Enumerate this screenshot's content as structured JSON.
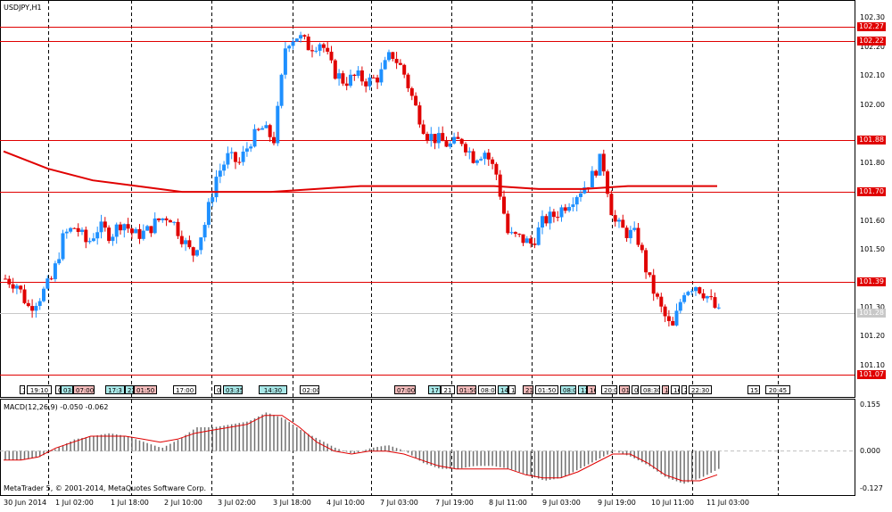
{
  "chart_title": "USDJPY,H1",
  "macd_label": "MACD(12,26,9) -0.050 -0.062",
  "copyright": "MetaTrader 5, © 2001-2014, MetaQuotes Software Corp.",
  "price_axis": [
    "102.30",
    "102.20",
    "102.10",
    "102.00",
    "101.80",
    "101.60",
    "101.50",
    "101.30",
    "101.20",
    "101.10"
  ],
  "level_labels": [
    {
      "text": "102.27",
      "style": "red"
    },
    {
      "text": "102.22",
      "style": "red"
    },
    {
      "text": "101.88",
      "style": "red"
    },
    {
      "text": "101.70",
      "style": "red"
    },
    {
      "text": "101.39",
      "style": "red"
    },
    {
      "text": "101.28",
      "style": "grey"
    },
    {
      "text": "101.07",
      "style": "red"
    }
  ],
  "macd_axis": [
    "0.155",
    "0.000",
    "-0.127"
  ],
  "time_axis": [
    "30 Jun 2014",
    "1 Jul 02:00",
    "1 Jul 18:00",
    "2 Jul 10:00",
    "3 Jul 02:00",
    "3 Jul 18:00",
    "4 Jul 10:00",
    "7 Jul 03:00",
    "7 Jul 19:00",
    "8 Jul 11:00",
    "9 Jul 03:00",
    "9 Jul 19:00",
    "10 Jul 11:00",
    "11 Jul 03:00"
  ],
  "event_tags": [
    {
      "text": "1",
      "color": "white"
    },
    {
      "text": "19:10",
      "color": "white"
    },
    {
      "text": "0",
      "color": "white"
    },
    {
      "text": "03:",
      "color": "teal"
    },
    {
      "text": "07:00",
      "color": "pink"
    },
    {
      "text": "17:3",
      "color": "teal"
    },
    {
      "text": "22",
      "color": "teal"
    },
    {
      "text": "01:50",
      "color": "pink"
    },
    {
      "text": "17:00",
      "color": "white"
    },
    {
      "text": "0",
      "color": "white"
    },
    {
      "text": "03:35",
      "color": "teal"
    },
    {
      "text": "14:30",
      "color": "teal"
    },
    {
      "text": "02:00",
      "color": "white"
    },
    {
      "text": "07:00",
      "color": "pink"
    },
    {
      "text": "17",
      "color": "teal"
    },
    {
      "text": "21",
      "color": "white"
    },
    {
      "text": "01:50",
      "color": "pink"
    },
    {
      "text": "08:0",
      "color": "white"
    },
    {
      "text": "14",
      "color": "teal"
    },
    {
      "text": "1",
      "color": "white"
    },
    {
      "text": "21",
      "color": "pink"
    },
    {
      "text": "01:50",
      "color": "white"
    },
    {
      "text": "08:0",
      "color": "teal"
    },
    {
      "text": "13",
      "color": "teal"
    },
    {
      "text": "16",
      "color": "pink"
    },
    {
      "text": "20:0",
      "color": "white"
    },
    {
      "text": "01",
      "color": "pink"
    },
    {
      "text": "0",
      "color": "white"
    },
    {
      "text": "08:30",
      "color": "white"
    },
    {
      "text": "1",
      "color": "pink"
    },
    {
      "text": "16",
      "color": "white"
    },
    {
      "text": "2",
      "color": "white"
    },
    {
      "text": "22:30",
      "color": "white"
    },
    {
      "text": "15:",
      "color": "white"
    },
    {
      "text": "20:45",
      "color": "white"
    }
  ],
  "chart_data": {
    "type": "candlestick",
    "symbol": "USDJPY",
    "timeframe": "H1",
    "ylim": [
      101.05,
      102.32
    ],
    "bull_color": "#1e90ff",
    "bear_color": "#e00000",
    "horizontal_levels": [
      102.27,
      102.22,
      101.88,
      101.7,
      101.39,
      101.07
    ],
    "last_price": 101.28,
    "price_path": [
      101.4,
      101.38,
      101.3,
      101.34,
      101.4,
      101.55,
      101.58,
      101.52,
      101.58,
      101.55,
      101.6,
      101.55,
      101.56,
      101.6,
      101.62,
      101.55,
      101.48,
      101.58,
      101.75,
      101.82,
      101.8,
      101.88,
      101.92,
      101.88,
      102.22,
      102.24,
      102.2,
      102.22,
      102.12,
      102.08,
      102.1,
      102.08,
      102.1,
      102.18,
      102.12,
      102.0,
      101.9,
      101.88,
      101.86,
      101.88,
      101.82,
      101.84,
      101.76,
      101.55,
      101.54,
      101.52,
      101.6,
      101.62,
      101.66,
      101.7,
      101.74,
      101.82,
      101.6,
      101.56,
      101.55,
      101.4,
      101.3,
      101.22,
      101.36,
      101.38,
      101.34,
      101.28
    ],
    "moving_average": [
      101.84,
      101.78,
      101.74,
      101.72,
      101.7,
      101.7,
      101.7,
      101.71,
      101.72,
      101.72,
      101.72,
      101.72,
      101.71,
      101.71,
      101.72,
      101.72,
      101.72
    ],
    "macd_ylim": [
      -0.127,
      0.155
    ],
    "macd_histogram": [
      -0.03,
      -0.03,
      -0.02,
      0.01,
      0.04,
      0.05,
      0.06,
      0.05,
      0.03,
      0.01,
      0.04,
      0.08,
      0.08,
      0.09,
      0.1,
      0.13,
      0.11,
      0.07,
      0.04,
      0.01,
      -0.01,
      0.01,
      0.02,
      0.0,
      -0.04,
      -0.06,
      -0.06,
      -0.05,
      -0.05,
      -0.06,
      -0.08,
      -0.1,
      -0.09,
      -0.06,
      -0.03,
      0.0,
      -0.02,
      -0.05,
      -0.09,
      -0.11,
      -0.09,
      -0.06
    ],
    "macd_signal": [
      -0.03,
      -0.03,
      -0.02,
      0.01,
      0.03,
      0.05,
      0.05,
      0.05,
      0.04,
      0.03,
      0.04,
      0.06,
      0.07,
      0.08,
      0.09,
      0.12,
      0.12,
      0.08,
      0.03,
      0.0,
      -0.01,
      0.0,
      0.0,
      -0.01,
      -0.03,
      -0.05,
      -0.06,
      -0.06,
      -0.06,
      -0.06,
      -0.08,
      -0.09,
      -0.09,
      -0.07,
      -0.04,
      -0.01,
      -0.01,
      -0.04,
      -0.08,
      -0.1,
      -0.1,
      -0.08
    ]
  }
}
